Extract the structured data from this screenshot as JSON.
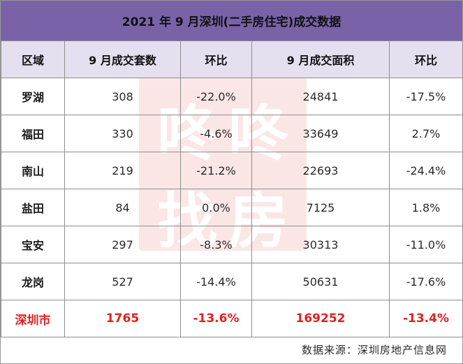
{
  "title": "2021 年 9 月深圳(二手房住宅)成交数据",
  "headers": [
    "区域",
    "9 月成交套数",
    "环比",
    "9 月成交面积",
    "环比"
  ],
  "rows": [
    {
      "region": "罗湖",
      "units": "308",
      "units_mom": "-22.0%",
      "area": "24841",
      "area_mom": "-17.5%"
    },
    {
      "region": "福田",
      "units": "330",
      "units_mom": "-4.6%",
      "area": "33649",
      "area_mom": "2.7%"
    },
    {
      "region": "南山",
      "units": "219",
      "units_mom": "-21.2%",
      "area": "22693",
      "area_mom": "-24.4%"
    },
    {
      "region": "盐田",
      "units": "84",
      "units_mom": "0.0%",
      "area": "7125",
      "area_mom": "1.8%"
    },
    {
      "region": "宝安",
      "units": "297",
      "units_mom": "-8.3%",
      "area": "30313",
      "area_mom": "-11.0%"
    },
    {
      "region": "龙岗",
      "units": "527",
      "units_mom": "-14.4%",
      "area": "50631",
      "area_mom": "-17.6%"
    }
  ],
  "total": {
    "region": "深圳市",
    "units": "1765",
    "units_mom": "-13.6%",
    "area": "169252",
    "area_mom": "-13.4%"
  },
  "source": "数据来源：深圳房地产信息网",
  "watermark": {
    "chars": [
      "咚",
      "咚",
      "找",
      "房"
    ]
  },
  "colors": {
    "title_bg": "#7a62a8",
    "header_bg": "#e6dff0",
    "total_text": "#e0211f",
    "watermark": "#f2a8a8"
  }
}
